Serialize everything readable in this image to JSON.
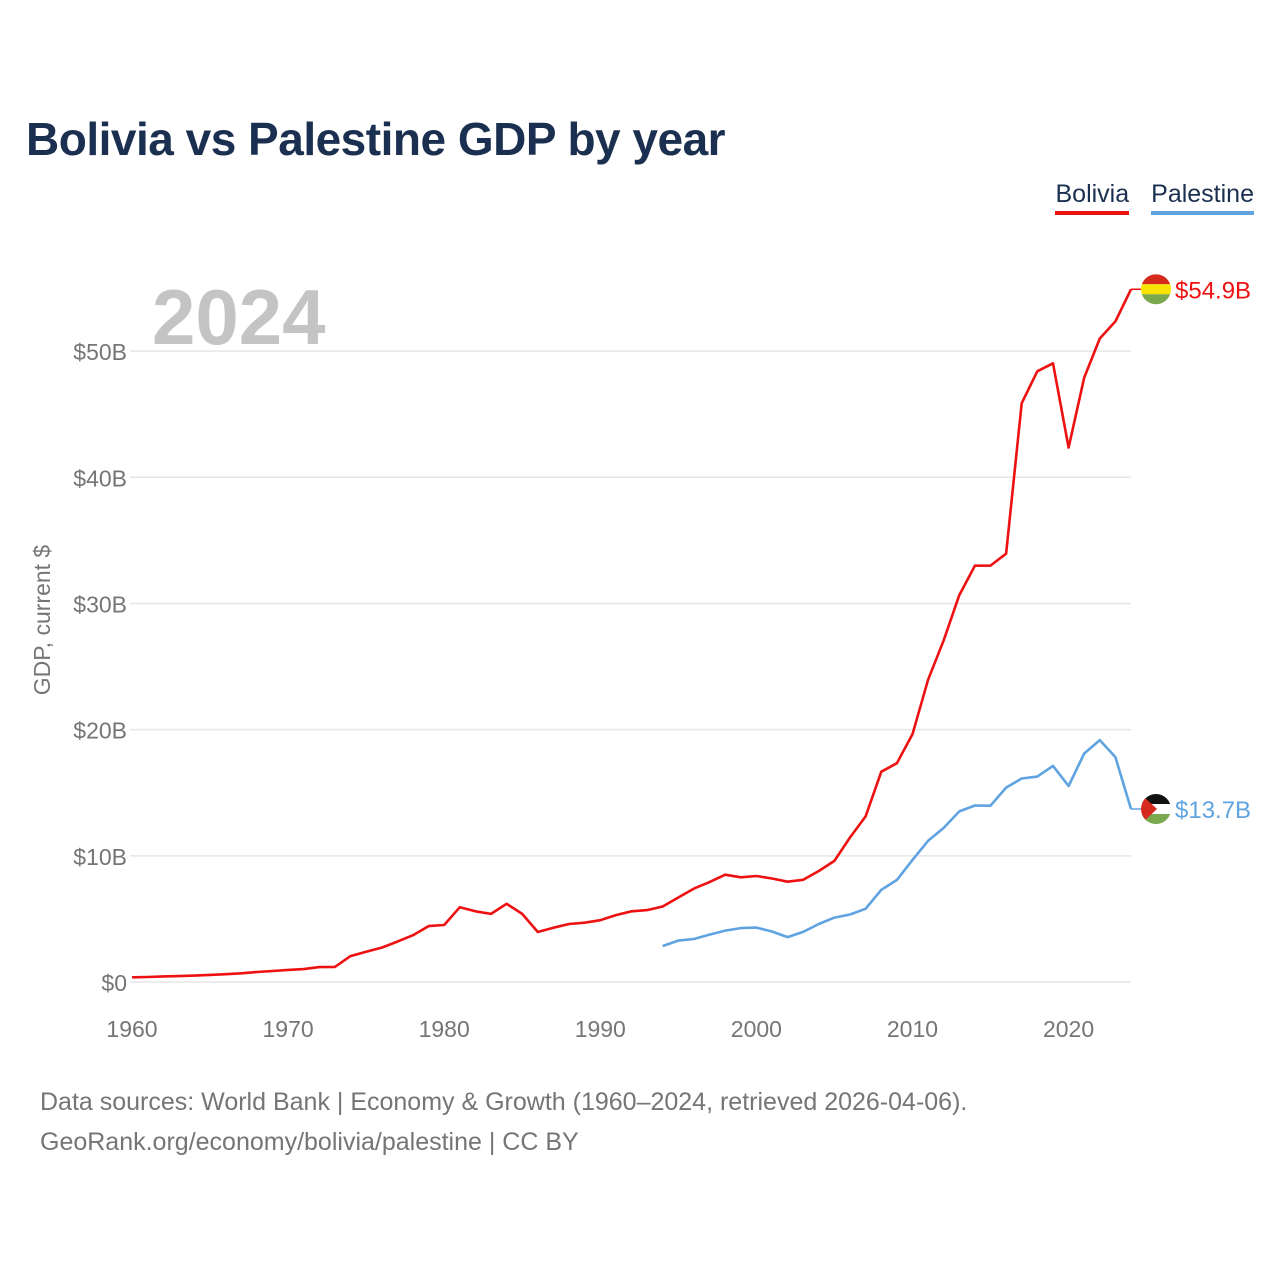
{
  "header": {
    "title": "Bolivia vs Palestine GDP by year"
  },
  "legend": {
    "bolivia": "Bolivia",
    "palestine": "Palestine"
  },
  "year_watermark": "2024",
  "footer": {
    "line1": "Data sources: World Bank | Economy & Growth (1960–2024, retrieved 2026-04-06).",
    "line2": "GeoRank.org/economy/bolivia/palestine | CC BY"
  },
  "colors": {
    "bolivia": "#ee1111",
    "palestine": "#5fa3e0",
    "grid": "#e6e6e6",
    "axis_text": "#757575"
  },
  "chart_data": {
    "type": "line",
    "title": "Bolivia vs Palestine GDP by year",
    "xlabel": "",
    "ylabel": "GDP, current $",
    "xlim": [
      1960,
      2024
    ],
    "ylim": [
      0,
      55
    ],
    "x_ticks": [
      1960,
      1970,
      1980,
      1990,
      2000,
      2010,
      2020
    ],
    "x_tick_labels": [
      "1960",
      "1970",
      "1980",
      "1990",
      "2000",
      "2010",
      "2020"
    ],
    "y_ticks": [
      0,
      10,
      20,
      30,
      40,
      50
    ],
    "y_tick_labels": [
      "$0",
      "$10B",
      "$20B",
      "$30B",
      "$40B",
      "$50B"
    ],
    "value_unit": "billion current US$",
    "series": [
      {
        "name": "Bolivia",
        "end_label": "$54.9B",
        "icon": "bolivia-flag-icon",
        "x": [
          1960,
          1961,
          1962,
          1963,
          1964,
          1965,
          1966,
          1967,
          1968,
          1969,
          1970,
          1971,
          1972,
          1973,
          1974,
          1975,
          1976,
          1977,
          1978,
          1979,
          1980,
          1981,
          1982,
          1983,
          1984,
          1985,
          1986,
          1987,
          1988,
          1989,
          1990,
          1991,
          1992,
          1993,
          1994,
          1995,
          1996,
          1997,
          1998,
          1999,
          2000,
          2001,
          2002,
          2003,
          2004,
          2005,
          2006,
          2007,
          2008,
          2009,
          2010,
          2011,
          2012,
          2013,
          2014,
          2015,
          2016,
          2017,
          2018,
          2019,
          2020,
          2021,
          2022,
          2023,
          2024
        ],
        "values": [
          0.37,
          0.4,
          0.44,
          0.47,
          0.51,
          0.56,
          0.62,
          0.69,
          0.79,
          0.87,
          0.96,
          1.02,
          1.18,
          1.2,
          2.05,
          2.4,
          2.73,
          3.2,
          3.71,
          4.43,
          4.52,
          5.93,
          5.6,
          5.4,
          6.2,
          5.4,
          3.96,
          4.3,
          4.6,
          4.7,
          4.9,
          5.3,
          5.6,
          5.7,
          5.98,
          6.7,
          7.4,
          7.92,
          8.5,
          8.3,
          8.4,
          8.2,
          7.95,
          8.1,
          8.8,
          9.6,
          11.45,
          13.12,
          16.67,
          17.34,
          19.65,
          23.96,
          27.08,
          30.66,
          32.99,
          33.0,
          33.94,
          45.87,
          48.4,
          49.03,
          42.35,
          47.9,
          51.0,
          52.35,
          54.9
        ]
      },
      {
        "name": "Palestine",
        "end_label": "$13.7B",
        "icon": "palestine-flag-icon",
        "x": [
          1994,
          1995,
          1996,
          1997,
          1998,
          1999,
          2000,
          2001,
          2002,
          2003,
          2004,
          2005,
          2006,
          2007,
          2008,
          2009,
          2010,
          2011,
          2012,
          2013,
          2014,
          2015,
          2016,
          2017,
          2018,
          2019,
          2020,
          2021,
          2022,
          2023,
          2024
        ],
        "values": [
          2.85,
          3.28,
          3.41,
          3.76,
          4.07,
          4.27,
          4.31,
          4.0,
          3.56,
          3.97,
          4.6,
          5.1,
          5.35,
          5.8,
          7.31,
          8.09,
          9.68,
          11.19,
          12.21,
          13.52,
          13.99,
          13.97,
          15.41,
          16.13,
          16.28,
          17.13,
          15.53,
          18.11,
          19.17,
          17.82,
          13.71
        ]
      }
    ]
  }
}
